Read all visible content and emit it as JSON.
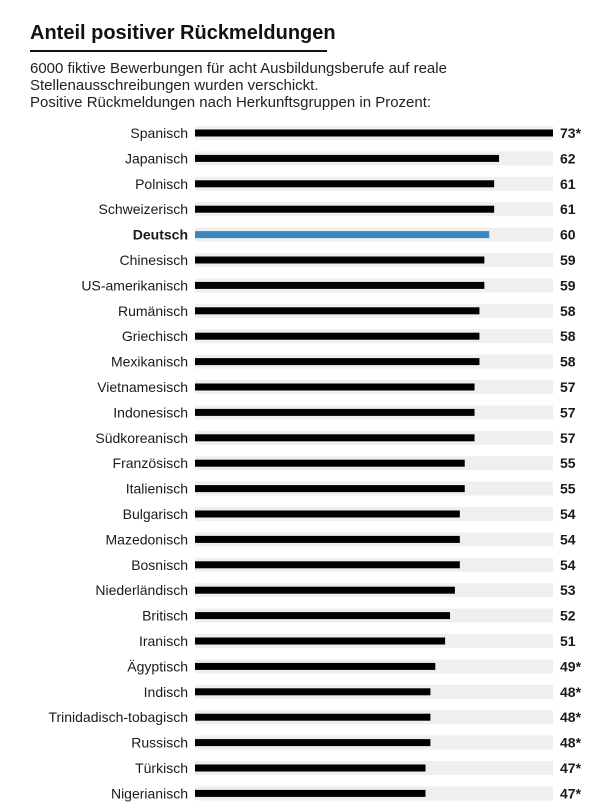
{
  "chart_data": {
    "type": "bar",
    "orientation": "horizontal",
    "title": "Anteil positiver Rückmeldungen",
    "subtitle": [
      "6000 fiktive Bewerbungen für acht Ausbildungsberufe auf reale",
      "Stellenausschreibungen wurden verschickt.",
      "Positive Rückmeldungen nach Herkunftsgruppen in Prozent:"
    ],
    "categories": [
      "Spanisch",
      "Japanisch",
      "Polnisch",
      "Schweizerisch",
      "Deutsch",
      "Chinesisch",
      "US-amerikanisch",
      "Rumänisch",
      "Griechisch",
      "Mexikanisch",
      "Vietnamesisch",
      "Indonesisch",
      "Südkoreanisch",
      "Französisch",
      "Italienisch",
      "Bulgarisch",
      "Mazedonisch",
      "Bosnisch",
      "Niederländisch",
      "Britisch",
      "Iranisch",
      "Ägyptisch",
      "Indisch",
      "Trinidadisch-tobagisch",
      "Russisch",
      "Türkisch",
      "Nigerianisch"
    ],
    "values": [
      73,
      62,
      61,
      61,
      60,
      59,
      59,
      58,
      58,
      58,
      57,
      57,
      57,
      55,
      55,
      54,
      54,
      54,
      53,
      52,
      51,
      49,
      48,
      48,
      48,
      47,
      47
    ],
    "value_labels": [
      "73*",
      "62",
      "61",
      "61",
      "60",
      "59",
      "59",
      "58",
      "58",
      "58",
      "57",
      "57",
      "57",
      "55",
      "55",
      "54",
      "54",
      "54",
      "53",
      "52",
      "51",
      "49*",
      "48*",
      "48*",
      "48*",
      "47*",
      "47*"
    ],
    "highlight_category": "Deutsch",
    "xlim": [
      0,
      73
    ],
    "xlabel": "",
    "ylabel": "",
    "colors": {
      "bar": "#000000",
      "highlight": "#3a87c0",
      "track": "#efefef",
      "text": "#1a1a1a"
    }
  }
}
